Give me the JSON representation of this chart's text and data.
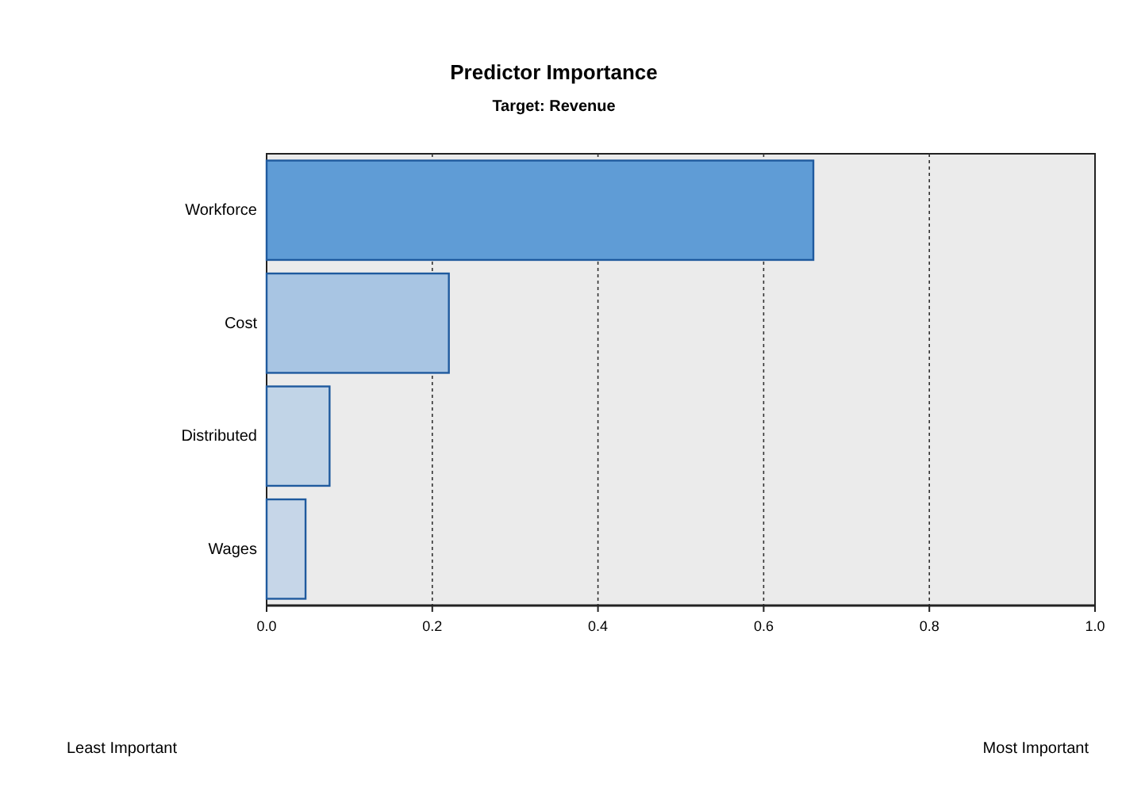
{
  "chart_data": {
    "type": "bar",
    "orientation": "horizontal",
    "title": "Predictor Importance",
    "subtitle": "Target: Revenue",
    "categories": [
      "Workforce",
      "Cost",
      "Distributed",
      "Wages"
    ],
    "values": [
      0.66,
      0.22,
      0.076,
      0.047
    ],
    "colors": [
      "#5f9cd6",
      "#a8c5e3",
      "#c1d4e7",
      "#c6d6e8"
    ],
    "xlim": [
      0,
      1
    ],
    "xticks": [
      {
        "value": 0,
        "label": "0.0"
      },
      0.2,
      0.4,
      0.6,
      0.8,
      {
        "value": 1,
        "label": "1.0"
      }
    ],
    "grid": "x",
    "annotations": [
      "Least Important",
      "Most Important"
    ]
  }
}
